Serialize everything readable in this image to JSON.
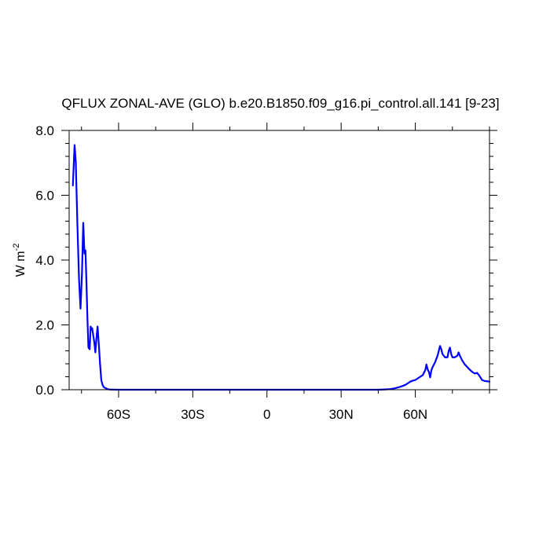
{
  "chart_data": {
    "type": "line",
    "title": "QFLUX ZONAL-AVE (GLO) b.e20.B1850.f09_g16.pi_control.all.141 [9-23]",
    "xlabel": "",
    "ylabel": "W m",
    "ylabel_superscript": "-2",
    "xlim": [
      -80,
      90
    ],
    "ylim": [
      0,
      8
    ],
    "x_ticks": [
      {
        "value": -60,
        "label": "60S"
      },
      {
        "value": -30,
        "label": "30S"
      },
      {
        "value": 0,
        "label": "0"
      },
      {
        "value": 30,
        "label": "30N"
      },
      {
        "value": 60,
        "label": "60N"
      }
    ],
    "y_ticks": [
      {
        "value": 0,
        "label": "0.0"
      },
      {
        "value": 2,
        "label": "2.0"
      },
      {
        "value": 4,
        "label": "4.0"
      },
      {
        "value": 6,
        "label": "6.0"
      },
      {
        "value": 8,
        "label": "8.0"
      }
    ],
    "grid": false,
    "series": [
      {
        "color": "#0000ff",
        "x": [
          -78.5,
          -77.8,
          -77.3,
          -76.7,
          -76.0,
          -75.4,
          -74.8,
          -74.3,
          -73.8,
          -73.4,
          -73.0,
          -72.6,
          -72.2,
          -71.7,
          -71.3,
          -71.0,
          -70.7,
          -70.3,
          -69.8,
          -69.4,
          -69.0,
          -68.5,
          -68.0,
          -67.5,
          -67.0,
          -66.6,
          -66.2,
          -65.6,
          -65.0,
          -64.5,
          -64.0,
          -63.0,
          -62.0,
          -60.0,
          -55.0,
          -45.0,
          -30.0,
          -10.0,
          0.0,
          20.0,
          40.0,
          45.0,
          48.0,
          50.0,
          52.0,
          53.5,
          55.0,
          56.0,
          57.0,
          58.0,
          59.0,
          60.0,
          61.0,
          62.0,
          63.0,
          64.0,
          64.5,
          65.0,
          65.5,
          66.0,
          66.5,
          67.0,
          68.0,
          69.0,
          69.5,
          70.0,
          70.5,
          71.0,
          72.0,
          73.0,
          73.5,
          74.0,
          74.5,
          75.0,
          76.0,
          77.0,
          77.5,
          78.0,
          79.0,
          80.0,
          81.0,
          82.0,
          83.0,
          84.0,
          85.0,
          86.0,
          87.0,
          88.0,
          89.0,
          90.0
        ],
        "y": [
          6.3,
          7.55,
          7.0,
          5.2,
          3.4,
          2.5,
          3.6,
          5.15,
          4.2,
          4.3,
          3.3,
          2.2,
          1.3,
          1.25,
          1.95,
          1.85,
          1.9,
          1.7,
          1.45,
          1.15,
          1.55,
          1.95,
          1.4,
          0.8,
          0.3,
          0.18,
          0.1,
          0.06,
          0.04,
          0.02,
          0.01,
          0.005,
          0.003,
          0.0,
          0.0,
          0.0,
          0.0,
          0.0,
          0.0,
          0.0,
          0.0,
          0.0,
          0.01,
          0.02,
          0.05,
          0.08,
          0.12,
          0.15,
          0.2,
          0.25,
          0.28,
          0.3,
          0.35,
          0.4,
          0.45,
          0.6,
          0.78,
          0.62,
          0.55,
          0.38,
          0.6,
          0.7,
          0.85,
          1.05,
          1.2,
          1.35,
          1.25,
          1.1,
          1.0,
          1.0,
          1.2,
          1.3,
          1.1,
          1.0,
          1.0,
          1.05,
          1.15,
          1.05,
          0.9,
          0.78,
          0.7,
          0.62,
          0.55,
          0.5,
          0.52,
          0.42,
          0.3,
          0.27,
          0.26,
          0.25
        ]
      }
    ]
  }
}
